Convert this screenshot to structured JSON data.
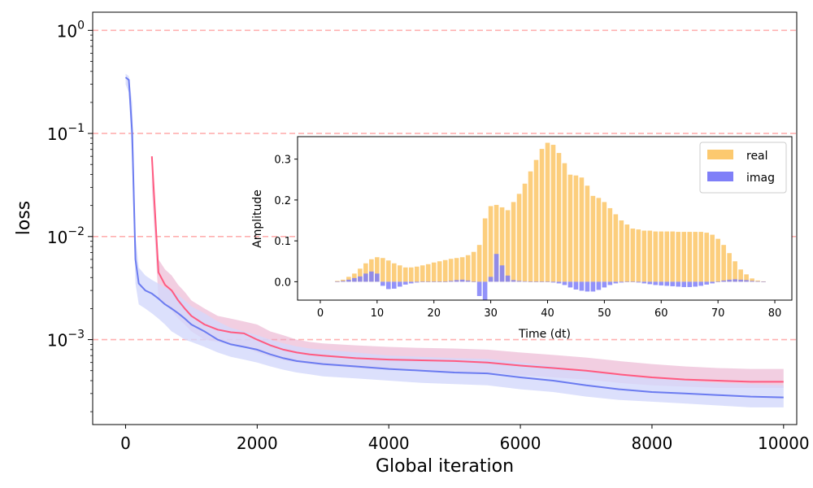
{
  "chart_data": [
    {
      "type": "line",
      "xlabel": "Global iteration",
      "ylabel": "loss",
      "yscale": "log",
      "xlim": [
        -500,
        10200
      ],
      "ylim": [
        0.00015,
        1.5
      ],
      "xticks": [
        0,
        2000,
        4000,
        6000,
        8000,
        10000
      ],
      "xtick_labels": [
        "0",
        "2000",
        "4000",
        "6000",
        "8000",
        "10000"
      ],
      "yticks": [
        {
          "value": 1,
          "base": "10",
          "exp": "0"
        },
        {
          "value": 0.1,
          "base": "10",
          "exp": "−1"
        },
        {
          "value": 0.01,
          "base": "10",
          "exp": "−2"
        },
        {
          "value": 0.001,
          "base": "10",
          "exp": "−3"
        }
      ],
      "reference_lines": [
        1,
        0.1,
        0.01,
        0.001
      ],
      "reference_line_color": "#ffb0b0",
      "series": [
        {
          "color": "#ff5a80",
          "raw_color": "#e8a6c8",
          "smoothed": {
            "x": [
              400,
              500,
              600,
              700,
              800,
              900,
              1000,
              1200,
              1400,
              1600,
              1800,
              2000,
              2200,
              2400,
              2600,
              2800,
              3000,
              3500,
              4000,
              4500,
              5000,
              5500,
              6000,
              6500,
              7000,
              7500,
              8000,
              8500,
              9000,
              9500,
              10000
            ],
            "y": [
              0.06,
              0.0045,
              0.0034,
              0.003,
              0.0024,
              0.002,
              0.0017,
              0.0014,
              0.00125,
              0.00118,
              0.00115,
              0.001,
              0.00088,
              0.0008,
              0.00075,
              0.00072,
              0.0007,
              0.00066,
              0.00064,
              0.00063,
              0.00062,
              0.0006,
              0.00056,
              0.00053,
              0.0005,
              0.00046,
              0.00043,
              0.00041,
              0.0004,
              0.00039,
              0.00039
            ]
          },
          "raw": {
            "x": [
              400,
              500,
              600,
              700,
              800,
              900,
              1000,
              1200,
              1400,
              1600,
              1800,
              2000,
              2200,
              2400,
              2600,
              2800,
              3000,
              3500,
              4000,
              4500,
              5000,
              5500,
              6000,
              6500,
              7000,
              7500,
              8000,
              8500,
              9000,
              9500,
              10000
            ],
            "low": [
              0.03,
              0.0025,
              0.0022,
              0.0019,
              0.0016,
              0.0014,
              0.0012,
              0.001,
              0.00095,
              0.0009,
              0.00085,
              0.00075,
              0.00068,
              0.00063,
              0.0006,
              0.00058,
              0.00056,
              0.00053,
              0.00051,
              0.0005,
              0.00049,
              0.00048,
              0.00045,
              0.00043,
              0.00041,
              0.00038,
              0.00036,
              0.00035,
              0.00034,
              0.00034,
              0.00034
            ],
            "high": [
              0.06,
              0.006,
              0.0048,
              0.0042,
              0.0034,
              0.0029,
              0.0024,
              0.002,
              0.0017,
              0.0016,
              0.0015,
              0.0014,
              0.0012,
              0.0011,
              0.001,
              0.00095,
              0.00092,
              0.00088,
              0.00085,
              0.00083,
              0.00082,
              0.0008,
              0.00075,
              0.00071,
              0.00067,
              0.00062,
              0.00058,
              0.00055,
              0.00053,
              0.00052,
              0.00052
            ]
          }
        },
        {
          "color": "#6b7bf0",
          "raw_color": "#d3d8fb",
          "smoothed": {
            "x": [
              0,
              50,
              100,
              150,
              200,
              300,
              400,
              500,
              600,
              700,
              800,
              900,
              1000,
              1200,
              1400,
              1600,
              1800,
              2000,
              2200,
              2400,
              2600,
              2800,
              3000,
              3500,
              4000,
              4500,
              5000,
              5500,
              6000,
              6500,
              7000,
              7500,
              8000,
              8500,
              9000,
              9500,
              10000
            ],
            "y": [
              0.35,
              0.33,
              0.1,
              0.006,
              0.0035,
              0.003,
              0.0028,
              0.0025,
              0.0022,
              0.002,
              0.0018,
              0.0016,
              0.0014,
              0.0012,
              0.001,
              0.0009,
              0.00085,
              0.0008,
              0.00072,
              0.00066,
              0.00062,
              0.0006,
              0.00058,
              0.00055,
              0.00052,
              0.0005,
              0.00048,
              0.00047,
              0.00043,
              0.0004,
              0.00036,
              0.00033,
              0.00031,
              0.0003,
              0.00029,
              0.00028,
              0.000275
            ]
          },
          "raw": {
            "x": [
              0,
              50,
              100,
              150,
              200,
              300,
              400,
              500,
              600,
              700,
              800,
              900,
              1000,
              1200,
              1400,
              1600,
              1800,
              2000,
              2200,
              2400,
              2600,
              2800,
              3000,
              3500,
              4000,
              4500,
              5000,
              5500,
              6000,
              6500,
              7000,
              7500,
              8000,
              8500,
              9000,
              9500,
              10000
            ],
            "low": [
              0.3,
              0.25,
              0.05,
              0.0035,
              0.0022,
              0.002,
              0.0018,
              0.0016,
              0.0014,
              0.0012,
              0.0011,
              0.001,
              0.00095,
              0.00085,
              0.00075,
              0.00068,
              0.00064,
              0.0006,
              0.00055,
              0.00051,
              0.00048,
              0.00046,
              0.00044,
              0.00042,
              0.0004,
              0.00038,
              0.00037,
              0.00036,
              0.00033,
              0.00031,
              0.00028,
              0.00026,
              0.00025,
              0.00024,
              0.00023,
              0.00022,
              0.00022
            ],
            "high": [
              0.38,
              0.36,
              0.2,
              0.01,
              0.005,
              0.0042,
              0.0038,
              0.0035,
              0.0032,
              0.003,
              0.0027,
              0.0024,
              0.0021,
              0.0018,
              0.0015,
              0.0013,
              0.0012,
              0.0011,
              0.001,
              0.00092,
              0.00086,
              0.00082,
              0.0008,
              0.00075,
              0.0007,
              0.00068,
              0.00066,
              0.00065,
              0.0006,
              0.00055,
              0.0005,
              0.00045,
              0.00042,
              0.0004,
              0.00038,
              0.00037,
              0.00036
            ]
          }
        }
      ]
    },
    {
      "type": "bar",
      "xlabel": "Time (dt)",
      "ylabel": "Amplitude",
      "xlim": [
        -4,
        83
      ],
      "ylim": [
        -0.045,
        0.355
      ],
      "xticks": [
        0,
        10,
        20,
        30,
        40,
        50,
        60,
        70,
        80
      ],
      "yticks": [
        0.0,
        0.1,
        0.2,
        0.3
      ],
      "ytick_labels": [
        "0.0",
        "0.1",
        "0.2",
        "0.3"
      ],
      "legend_position": "top-right",
      "series": [
        {
          "name": "real",
          "color": "#fcc96f",
          "x": [
            3,
            4,
            5,
            6,
            7,
            8,
            9,
            10,
            11,
            12,
            13,
            14,
            15,
            16,
            17,
            18,
            19,
            20,
            21,
            22,
            23,
            24,
            25,
            26,
            27,
            28,
            29,
            30,
            31,
            32,
            33,
            34,
            35,
            36,
            37,
            38,
            39,
            40,
            41,
            42,
            43,
            44,
            45,
            46,
            47,
            48,
            49,
            50,
            51,
            52,
            53,
            54,
            55,
            56,
            57,
            58,
            59,
            60,
            61,
            62,
            63,
            64,
            65,
            66,
            67,
            68,
            69,
            70,
            71,
            72,
            73,
            74,
            75,
            76,
            77,
            78
          ],
          "values": [
            0.002,
            0.005,
            0.012,
            0.02,
            0.032,
            0.045,
            0.055,
            0.06,
            0.058,
            0.052,
            0.045,
            0.04,
            0.035,
            0.035,
            0.037,
            0.04,
            0.043,
            0.047,
            0.05,
            0.053,
            0.056,
            0.058,
            0.06,
            0.065,
            0.073,
            0.09,
            0.155,
            0.185,
            0.188,
            0.182,
            0.175,
            0.195,
            0.215,
            0.24,
            0.27,
            0.298,
            0.325,
            0.34,
            0.335,
            0.315,
            0.29,
            0.262,
            0.26,
            0.255,
            0.235,
            0.21,
            0.205,
            0.195,
            0.18,
            0.165,
            0.15,
            0.14,
            0.13,
            0.128,
            0.125,
            0.125,
            0.123,
            0.123,
            0.123,
            0.123,
            0.122,
            0.122,
            0.122,
            0.122,
            0.122,
            0.12,
            0.115,
            0.105,
            0.09,
            0.07,
            0.05,
            0.03,
            0.018,
            0.008,
            0.003,
            0.001
          ]
        },
        {
          "name": "imag",
          "color": "#7f7ff8",
          "x": [
            3,
            4,
            5,
            6,
            7,
            8,
            9,
            10,
            11,
            12,
            13,
            14,
            15,
            16,
            17,
            18,
            19,
            20,
            21,
            22,
            23,
            24,
            25,
            26,
            27,
            28,
            29,
            30,
            31,
            32,
            33,
            34,
            35,
            36,
            37,
            38,
            39,
            40,
            41,
            42,
            43,
            44,
            45,
            46,
            47,
            48,
            49,
            50,
            51,
            52,
            53,
            54,
            55,
            56,
            57,
            58,
            59,
            60,
            61,
            62,
            63,
            64,
            65,
            66,
            67,
            68,
            69,
            70,
            71,
            72,
            73,
            74,
            75,
            76,
            77,
            78
          ],
          "values": [
            0.0,
            0.002,
            0.005,
            0.009,
            0.013,
            0.02,
            0.025,
            0.02,
            -0.01,
            -0.018,
            -0.017,
            -0.012,
            -0.007,
            -0.004,
            -0.002,
            0.0,
            0.0,
            0.0,
            0.0,
            0.0,
            0.002,
            0.004,
            0.005,
            0.003,
            0.0,
            -0.035,
            -0.045,
            0.012,
            0.068,
            0.04,
            0.015,
            0.004,
            0.002,
            0.001,
            0.0,
            0.0,
            0.0,
            0.0,
            -0.002,
            -0.004,
            -0.008,
            -0.014,
            -0.019,
            -0.022,
            -0.024,
            -0.024,
            -0.02,
            -0.014,
            -0.008,
            -0.004,
            -0.002,
            0.0,
            0.0,
            -0.002,
            -0.004,
            -0.006,
            -0.008,
            -0.009,
            -0.01,
            -0.011,
            -0.012,
            -0.013,
            -0.013,
            -0.012,
            -0.01,
            -0.007,
            -0.004,
            0.0,
            0.003,
            0.005,
            0.006,
            0.005,
            0.004,
            0.002,
            0.001,
            0.0
          ]
        }
      ]
    }
  ]
}
